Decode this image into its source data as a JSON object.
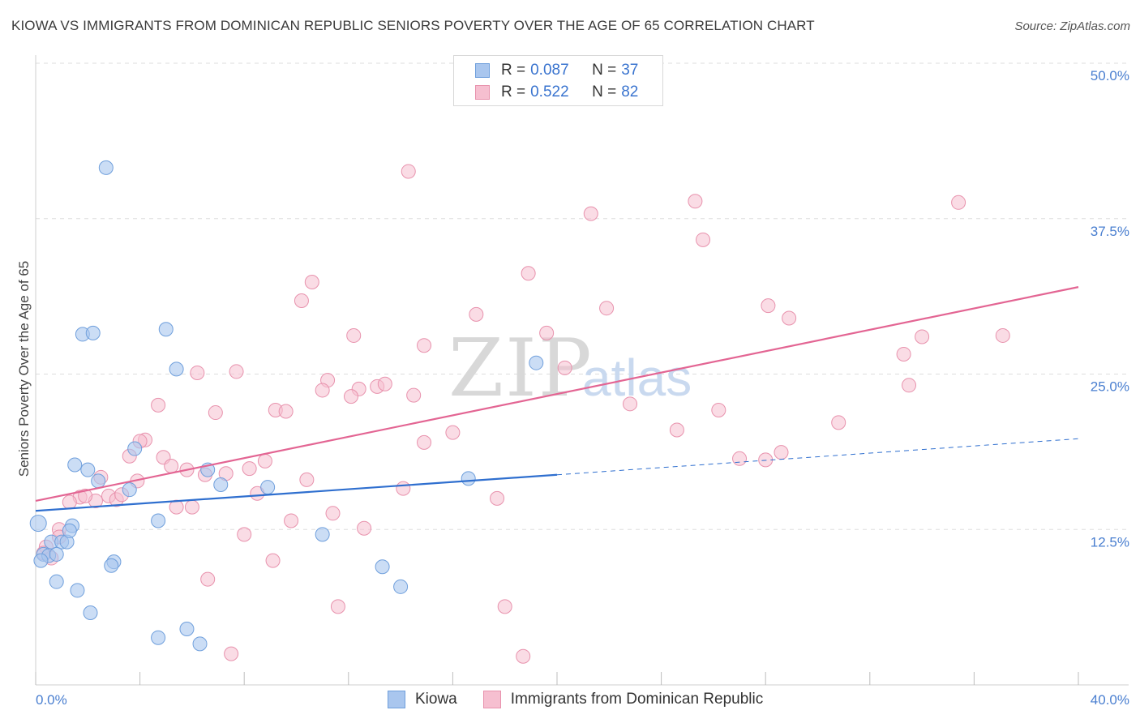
{
  "title": "KIOWA VS IMMIGRANTS FROM DOMINICAN REPUBLIC SENIORS POVERTY OVER THE AGE OF 65 CORRELATION CHART",
  "source": "Source: ZipAtlas.com",
  "watermark": {
    "zip": "ZIP",
    "atlas": "atlas"
  },
  "legend": {
    "r_label": "R =",
    "n_label": "N =",
    "kiowa": {
      "r": "0.087",
      "n": "37"
    },
    "dominican": {
      "r": "0.522",
      "n": "82"
    }
  },
  "colors": {
    "kiowa_fill": "#a9c6ee",
    "kiowa_stroke": "#6f9fdc",
    "kiowa_line": "#2f6fcf",
    "dominican_fill": "#f6bfd0",
    "dominican_stroke": "#e892ad",
    "dominican_line": "#e36593",
    "tick_text": "#4a7fd0",
    "grid": "#dddddd"
  },
  "chart_data": {
    "type": "scatter",
    "title": "KIOWA VS IMMIGRANTS FROM DOMINICAN REPUBLIC SENIORS POVERTY OVER THE AGE OF 65 CORRELATION CHART",
    "xlabel": "",
    "ylabel": "Seniors Poverty Over the Age of 65",
    "xlim": [
      0,
      40
    ],
    "ylim": [
      0,
      50
    ],
    "x_tick_labels": [
      "0.0%",
      "40.0%"
    ],
    "y_ticks": [
      12.5,
      25.0,
      37.5,
      50.0
    ],
    "y_tick_labels": [
      "12.5%",
      "25.0%",
      "37.5%",
      "50.0%"
    ],
    "legend_position": "top-center",
    "series": [
      {
        "name": "Kiowa",
        "r": 0.087,
        "n": 37,
        "trend": {
          "x0": 0,
          "y0": 14.0,
          "x1": 20,
          "y1": 16.9,
          "dashed_to_x": 40,
          "dashed_to_y": 19.8
        },
        "points": [
          [
            2.7,
            41.6
          ],
          [
            1.8,
            28.2
          ],
          [
            2.2,
            28.3
          ],
          [
            5.0,
            28.6
          ],
          [
            5.4,
            25.4
          ],
          [
            19.2,
            25.9
          ],
          [
            3.8,
            19.0
          ],
          [
            1.5,
            17.7
          ],
          [
            2.0,
            17.3
          ],
          [
            2.4,
            16.4
          ],
          [
            6.6,
            17.3
          ],
          [
            7.1,
            16.1
          ],
          [
            3.6,
            15.7
          ],
          [
            8.9,
            15.9
          ],
          [
            16.6,
            16.6
          ],
          [
            0.1,
            13.0
          ],
          [
            1.4,
            12.8
          ],
          [
            0.6,
            11.5
          ],
          [
            1.0,
            11.5
          ],
          [
            1.2,
            11.5
          ],
          [
            4.7,
            13.2
          ],
          [
            3.0,
            9.9
          ],
          [
            0.3,
            10.5
          ],
          [
            0.5,
            10.4
          ],
          [
            0.8,
            10.5
          ],
          [
            0.2,
            10.0
          ],
          [
            2.9,
            9.6
          ],
          [
            11.0,
            12.1
          ],
          [
            13.3,
            9.5
          ],
          [
            0.8,
            8.3
          ],
          [
            1.6,
            7.6
          ],
          [
            14.0,
            7.9
          ],
          [
            2.1,
            5.8
          ],
          [
            5.8,
            4.5
          ],
          [
            4.7,
            3.8
          ],
          [
            6.3,
            3.3
          ],
          [
            1.3,
            12.4
          ]
        ]
      },
      {
        "name": "Immigrants from Dominican Republic",
        "r": 0.522,
        "n": 82,
        "trend": {
          "x0": 0,
          "y0": 14.8,
          "x1": 40,
          "y1": 32.0
        },
        "points": [
          [
            14.3,
            41.3
          ],
          [
            25.3,
            38.9
          ],
          [
            35.4,
            38.8
          ],
          [
            21.3,
            37.9
          ],
          [
            25.6,
            35.8
          ],
          [
            10.6,
            32.4
          ],
          [
            18.9,
            33.1
          ],
          [
            10.2,
            30.9
          ],
          [
            16.9,
            29.8
          ],
          [
            21.9,
            30.3
          ],
          [
            28.1,
            30.5
          ],
          [
            28.9,
            29.5
          ],
          [
            12.2,
            28.1
          ],
          [
            19.6,
            28.3
          ],
          [
            14.9,
            27.3
          ],
          [
            34.0,
            28.0
          ],
          [
            37.1,
            28.1
          ],
          [
            33.3,
            26.6
          ],
          [
            6.2,
            25.1
          ],
          [
            7.7,
            25.2
          ],
          [
            11.2,
            24.5
          ],
          [
            11.0,
            23.7
          ],
          [
            12.4,
            23.8
          ],
          [
            13.1,
            24.0
          ],
          [
            13.4,
            24.2
          ],
          [
            20.3,
            25.5
          ],
          [
            14.5,
            23.3
          ],
          [
            12.1,
            23.2
          ],
          [
            4.7,
            22.5
          ],
          [
            6.9,
            21.9
          ],
          [
            9.2,
            22.1
          ],
          [
            9.6,
            22.0
          ],
          [
            22.8,
            22.6
          ],
          [
            26.2,
            22.1
          ],
          [
            33.5,
            24.1
          ],
          [
            30.8,
            21.1
          ],
          [
            16.0,
            20.3
          ],
          [
            14.9,
            19.5
          ],
          [
            24.6,
            20.5
          ],
          [
            4.2,
            19.7
          ],
          [
            4.0,
            19.6
          ],
          [
            3.6,
            18.4
          ],
          [
            4.9,
            18.3
          ],
          [
            28.6,
            18.7
          ],
          [
            27.0,
            18.2
          ],
          [
            28.0,
            18.1
          ],
          [
            5.2,
            17.6
          ],
          [
            5.8,
            17.3
          ],
          [
            7.3,
            17.0
          ],
          [
            8.2,
            17.4
          ],
          [
            8.8,
            18.0
          ],
          [
            2.5,
            16.7
          ],
          [
            3.9,
            16.4
          ],
          [
            6.5,
            16.9
          ],
          [
            10.4,
            16.5
          ],
          [
            1.7,
            15.1
          ],
          [
            2.3,
            14.8
          ],
          [
            1.3,
            14.7
          ],
          [
            1.9,
            15.2
          ],
          [
            2.8,
            15.2
          ],
          [
            3.1,
            14.9
          ],
          [
            3.3,
            15.3
          ],
          [
            8.5,
            15.4
          ],
          [
            14.1,
            15.8
          ],
          [
            17.7,
            15.0
          ],
          [
            5.4,
            14.3
          ],
          [
            6.0,
            14.3
          ],
          [
            9.8,
            13.2
          ],
          [
            11.4,
            13.8
          ],
          [
            12.6,
            12.6
          ],
          [
            8.0,
            12.1
          ],
          [
            0.9,
            12.5
          ],
          [
            0.4,
            11.1
          ],
          [
            0.9,
            11.9
          ],
          [
            0.3,
            10.6
          ],
          [
            9.1,
            10.0
          ],
          [
            6.6,
            8.5
          ],
          [
            11.6,
            6.3
          ],
          [
            18.0,
            6.3
          ],
          [
            7.5,
            2.5
          ],
          [
            18.7,
            2.3
          ],
          [
            0.6,
            10.2
          ]
        ]
      }
    ]
  },
  "bottom_legend": {
    "kiowa": "Kiowa",
    "dominican": "Immigrants from Dominican Republic"
  }
}
